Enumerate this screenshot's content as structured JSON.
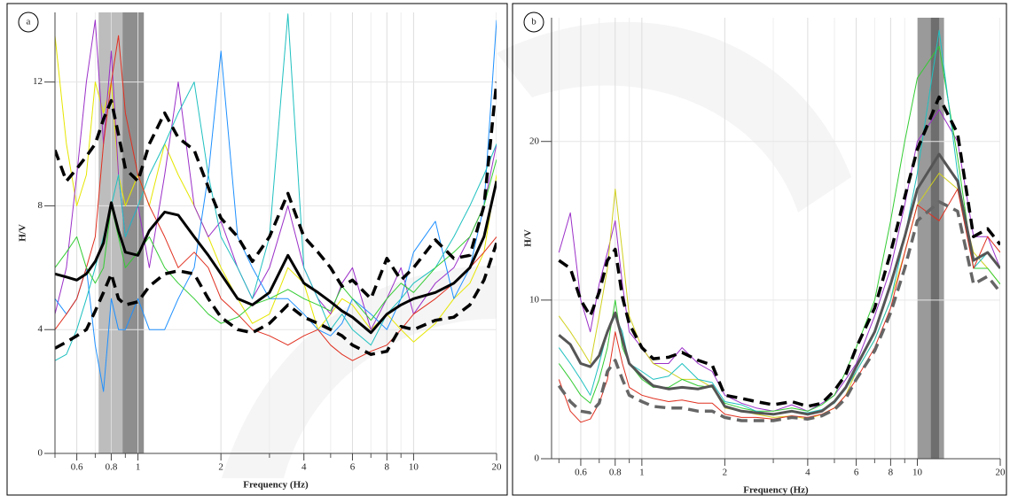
{
  "chart_data": [
    {
      "type": "line",
      "panel_label": "a",
      "x_label": "Frequency (Hz)",
      "y_label": "H/V",
      "x_scale": "log",
      "xlim": [
        0.5,
        20
      ],
      "ylim": [
        0,
        14.25
      ],
      "xticks": [
        0.6,
        0.8,
        1,
        2,
        4,
        6,
        8,
        10,
        20
      ],
      "minor_xticks": [
        0.5,
        0.7,
        0.9,
        3,
        5,
        7,
        9
      ],
      "yticks": [
        0,
        4,
        8,
        12
      ],
      "grid": true,
      "band": [
        0.72,
        1.05
      ],
      "band_dark": [
        0.88,
        1.05
      ],
      "band_color": "#bdbdbd",
      "band_dark_color": "#8e8e8e",
      "x": [
        0.5,
        0.55,
        0.6,
        0.65,
        0.7,
        0.75,
        0.8,
        0.85,
        0.9,
        1,
        1.1,
        1.25,
        1.4,
        1.6,
        1.8,
        2,
        2.3,
        2.6,
        3,
        3.5,
        4,
        4.5,
        5,
        5.5,
        6,
        7,
        8,
        9,
        10,
        12,
        14,
        16,
        18,
        20
      ],
      "series": [
        {
          "color": "#e6e600",
          "style": "solid",
          "width": 1,
          "values": [
            13.5,
            10,
            8,
            9,
            12,
            11,
            12,
            9,
            8,
            9,
            8,
            10,
            9,
            8,
            7,
            6,
            5,
            4.2,
            4.5,
            6,
            5.5,
            4,
            4.5,
            5,
            4.8,
            4,
            4.5,
            4,
            3.6,
            4.2,
            5,
            5.5,
            6.5,
            9
          ]
        },
        {
          "color": "#9b30c8",
          "style": "solid",
          "width": 1,
          "values": [
            4.5,
            6,
            9,
            12,
            14,
            10,
            13,
            9,
            7,
            8,
            6,
            9,
            12,
            8,
            7,
            7.5,
            6,
            5,
            6,
            8,
            6,
            5,
            4.5,
            5.5,
            6,
            4,
            5,
            6,
            4.5,
            5.5,
            6,
            7,
            8,
            10
          ]
        },
        {
          "color": "#1e90ff",
          "style": "solid",
          "width": 1,
          "values": [
            5,
            4.5,
            5,
            6,
            3.5,
            2,
            5,
            4,
            4,
            5,
            4,
            4,
            5,
            6,
            9,
            13,
            7,
            6,
            5,
            5,
            4.5,
            4,
            3.8,
            4.2,
            5,
            4.5,
            4,
            5,
            6.5,
            7.5,
            5,
            6,
            8,
            14
          ]
        },
        {
          "color": "#20c0c0",
          "style": "solid",
          "width": 1,
          "values": [
            3,
            3.2,
            4,
            5,
            6,
            7,
            8,
            9,
            7,
            8,
            9,
            10,
            11,
            12,
            9,
            7,
            6,
            5,
            7,
            14.2,
            6,
            5,
            4,
            4.5,
            4,
            3.5,
            4.5,
            5,
            5.5,
            6,
            7,
            8,
            9,
            10
          ]
        },
        {
          "color": "#e03020",
          "style": "solid",
          "width": 1,
          "values": [
            4,
            4.5,
            5,
            6,
            7,
            10,
            12,
            13.5,
            11,
            9,
            8,
            7,
            6,
            6.5,
            6,
            5,
            4.5,
            4,
            3.8,
            3.5,
            3.8,
            4,
            3.5,
            3.2,
            3,
            3.3,
            3.5,
            4,
            4.5,
            5,
            5.5,
            6,
            6.5,
            7
          ]
        },
        {
          "color": "#33cc33",
          "style": "solid",
          "width": 1,
          "values": [
            6,
            6.5,
            7,
            6,
            5.5,
            6,
            8,
            7,
            6,
            6.5,
            7,
            6,
            5.5,
            5,
            4.5,
            4.2,
            4.4,
            4.8,
            5,
            5.3,
            5,
            4.8,
            4.6,
            5.4,
            5,
            4.3,
            5,
            5.5,
            5.2,
            6,
            6.5,
            7,
            8,
            9.5
          ]
        },
        {
          "color": "#000000",
          "style": "dashed",
          "width": 3.5,
          "values": [
            9.8,
            8.8,
            9.2,
            9.6,
            10,
            10.8,
            11.4,
            10.3,
            9.2,
            8.8,
            10,
            11,
            10.2,
            9.8,
            8.6,
            7.6,
            7,
            6.2,
            7,
            8.4,
            7,
            6.5,
            6,
            5.4,
            5.6,
            5,
            6.3,
            5.6,
            6,
            6.9,
            6.3,
            6.4,
            8,
            12
          ]
        },
        {
          "color": "#000000",
          "style": "dashed",
          "width": 3.5,
          "values": [
            3.4,
            3.6,
            3.8,
            4,
            4.6,
            5.2,
            5.8,
            5,
            4.8,
            4.9,
            5.4,
            5.8,
            5.9,
            5.8,
            5,
            4.4,
            4,
            3.9,
            4.2,
            4.8,
            4.4,
            4.2,
            4,
            3.8,
            3.5,
            3.2,
            3.3,
            4.1,
            4,
            4.3,
            4.4,
            4.8,
            5.6,
            6.8
          ]
        },
        {
          "color": "#000000",
          "style": "solid",
          "width": 3,
          "values": [
            5.8,
            5.7,
            5.6,
            5.8,
            6.2,
            6.8,
            8.1,
            7.2,
            6.5,
            6.4,
            7.2,
            7.8,
            7.7,
            7,
            6.4,
            5.8,
            5,
            4.8,
            5.2,
            6.4,
            5.5,
            5.2,
            4.9,
            4.6,
            4.4,
            3.9,
            4.5,
            4.8,
            5,
            5.2,
            5.5,
            6,
            7,
            8.8
          ]
        }
      ]
    },
    {
      "type": "line",
      "panel_label": "b",
      "x_label": "Frequency (Hz)",
      "y_label": "H/V",
      "x_scale": "log",
      "xlim": [
        0.47,
        20
      ],
      "ylim": [
        0,
        27.8
      ],
      "xticks": [
        0.6,
        0.8,
        1,
        2,
        4,
        6,
        8,
        10,
        20
      ],
      "minor_xticks": [
        0.5,
        0.7,
        0.9,
        3,
        5,
        7,
        9
      ],
      "yticks": [
        0,
        10,
        20
      ],
      "grid": true,
      "band": [
        10,
        12.5
      ],
      "band_dark": [
        11.2,
        12
      ],
      "band_color": "#9a9a9a",
      "band_dark_color": "#6e6e6e",
      "x": [
        0.5,
        0.55,
        0.6,
        0.65,
        0.7,
        0.75,
        0.8,
        0.85,
        0.9,
        1,
        1.1,
        1.25,
        1.4,
        1.6,
        1.8,
        2,
        2.3,
        2.6,
        3,
        3.5,
        4,
        4.5,
        5,
        5.5,
        6,
        7,
        8,
        9,
        10,
        12,
        14,
        16,
        18,
        20
      ],
      "series": [
        {
          "color": "#9b30c8",
          "style": "solid",
          "width": 1,
          "values": [
            13,
            15.5,
            10,
            8,
            11,
            13,
            15,
            11,
            8,
            7,
            6,
            6,
            7,
            6,
            5.5,
            4,
            3.5,
            3.2,
            3,
            3.4,
            3,
            3.5,
            4,
            5,
            6,
            9,
            12,
            16,
            20,
            22,
            20,
            14,
            14,
            12
          ]
        },
        {
          "color": "#d0d020",
          "style": "solid",
          "width": 1,
          "values": [
            9,
            8,
            7,
            6,
            9,
            12,
            17,
            13,
            9,
            7,
            6,
            5.5,
            5,
            5,
            4.5,
            3.2,
            3,
            2.8,
            2.6,
            2.7,
            2.5,
            2.8,
            3.2,
            4,
            5.5,
            7.5,
            10,
            13,
            16,
            18,
            17,
            13,
            12,
            11
          ]
        },
        {
          "color": "#33cc33",
          "style": "solid",
          "width": 1,
          "values": [
            6,
            5,
            4,
            3.5,
            5,
            7,
            10,
            7,
            6,
            5,
            4.5,
            4.5,
            5,
            4.6,
            4.5,
            3.5,
            3.2,
            3,
            3,
            3.2,
            3,
            3.4,
            4,
            5.5,
            7,
            10,
            15,
            20,
            24,
            26,
            19,
            12,
            12,
            11
          ]
        },
        {
          "color": "#20c0c0",
          "style": "solid",
          "width": 1,
          "values": [
            7,
            6,
            5,
            4,
            6,
            8,
            9,
            8,
            6,
            5.5,
            5,
            5.2,
            6,
            5,
            4.8,
            3.6,
            3.4,
            3,
            2.8,
            3,
            2.9,
            3.1,
            3.5,
            4.4,
            5.5,
            7.5,
            10,
            14,
            18,
            27,
            18,
            12,
            13,
            12
          ]
        },
        {
          "color": "#e03020",
          "style": "solid",
          "width": 1,
          "values": [
            5,
            3,
            2.3,
            2.5,
            3.5,
            5,
            8,
            6,
            4.5,
            4,
            3.8,
            3.6,
            3.7,
            3.5,
            3.5,
            2.8,
            2.6,
            2.6,
            2.5,
            2.7,
            2.6,
            2.8,
            3.2,
            4,
            5,
            7,
            9.5,
            13,
            16,
            15,
            17,
            12,
            14,
            13
          ]
        },
        {
          "color": "#000000",
          "style": "dashed",
          "width": 3.5,
          "values": [
            12.5,
            12,
            10,
            9,
            10.5,
            12.5,
            13.2,
            10.2,
            8.5,
            7,
            6.3,
            6.4,
            6.7,
            6.2,
            5.9,
            4,
            3.8,
            3.6,
            3.4,
            3.6,
            3.3,
            3.5,
            4.3,
            5.3,
            7,
            9.5,
            13,
            16.5,
            19.5,
            22.8,
            20.5,
            14,
            14.5,
            13.5
          ]
        },
        {
          "color": "#666666",
          "style": "dashed",
          "width": 3.5,
          "values": [
            4.6,
            3.6,
            3,
            2.9,
            3.5,
            5.5,
            6.2,
            5,
            4,
            3.6,
            3.3,
            3.2,
            3.2,
            3,
            3,
            2.6,
            2.4,
            2.4,
            2.4,
            2.6,
            2.5,
            2.7,
            3.1,
            3.8,
            5,
            6.8,
            9.2,
            12,
            15,
            16.2,
            15.6,
            11,
            11.5,
            10.5
          ]
        },
        {
          "color": "#555555",
          "style": "solid",
          "width": 3,
          "values": [
            7.8,
            7.2,
            6,
            5.8,
            6.5,
            8,
            9.2,
            7.5,
            6,
            5.2,
            4.6,
            4.4,
            4.5,
            4.4,
            4.6,
            3.3,
            3,
            2.9,
            2.8,
            3,
            2.8,
            3,
            3.6,
            4.5,
            5.8,
            8,
            11,
            14,
            17,
            19.2,
            17.5,
            12.5,
            13,
            12
          ]
        }
      ]
    }
  ]
}
